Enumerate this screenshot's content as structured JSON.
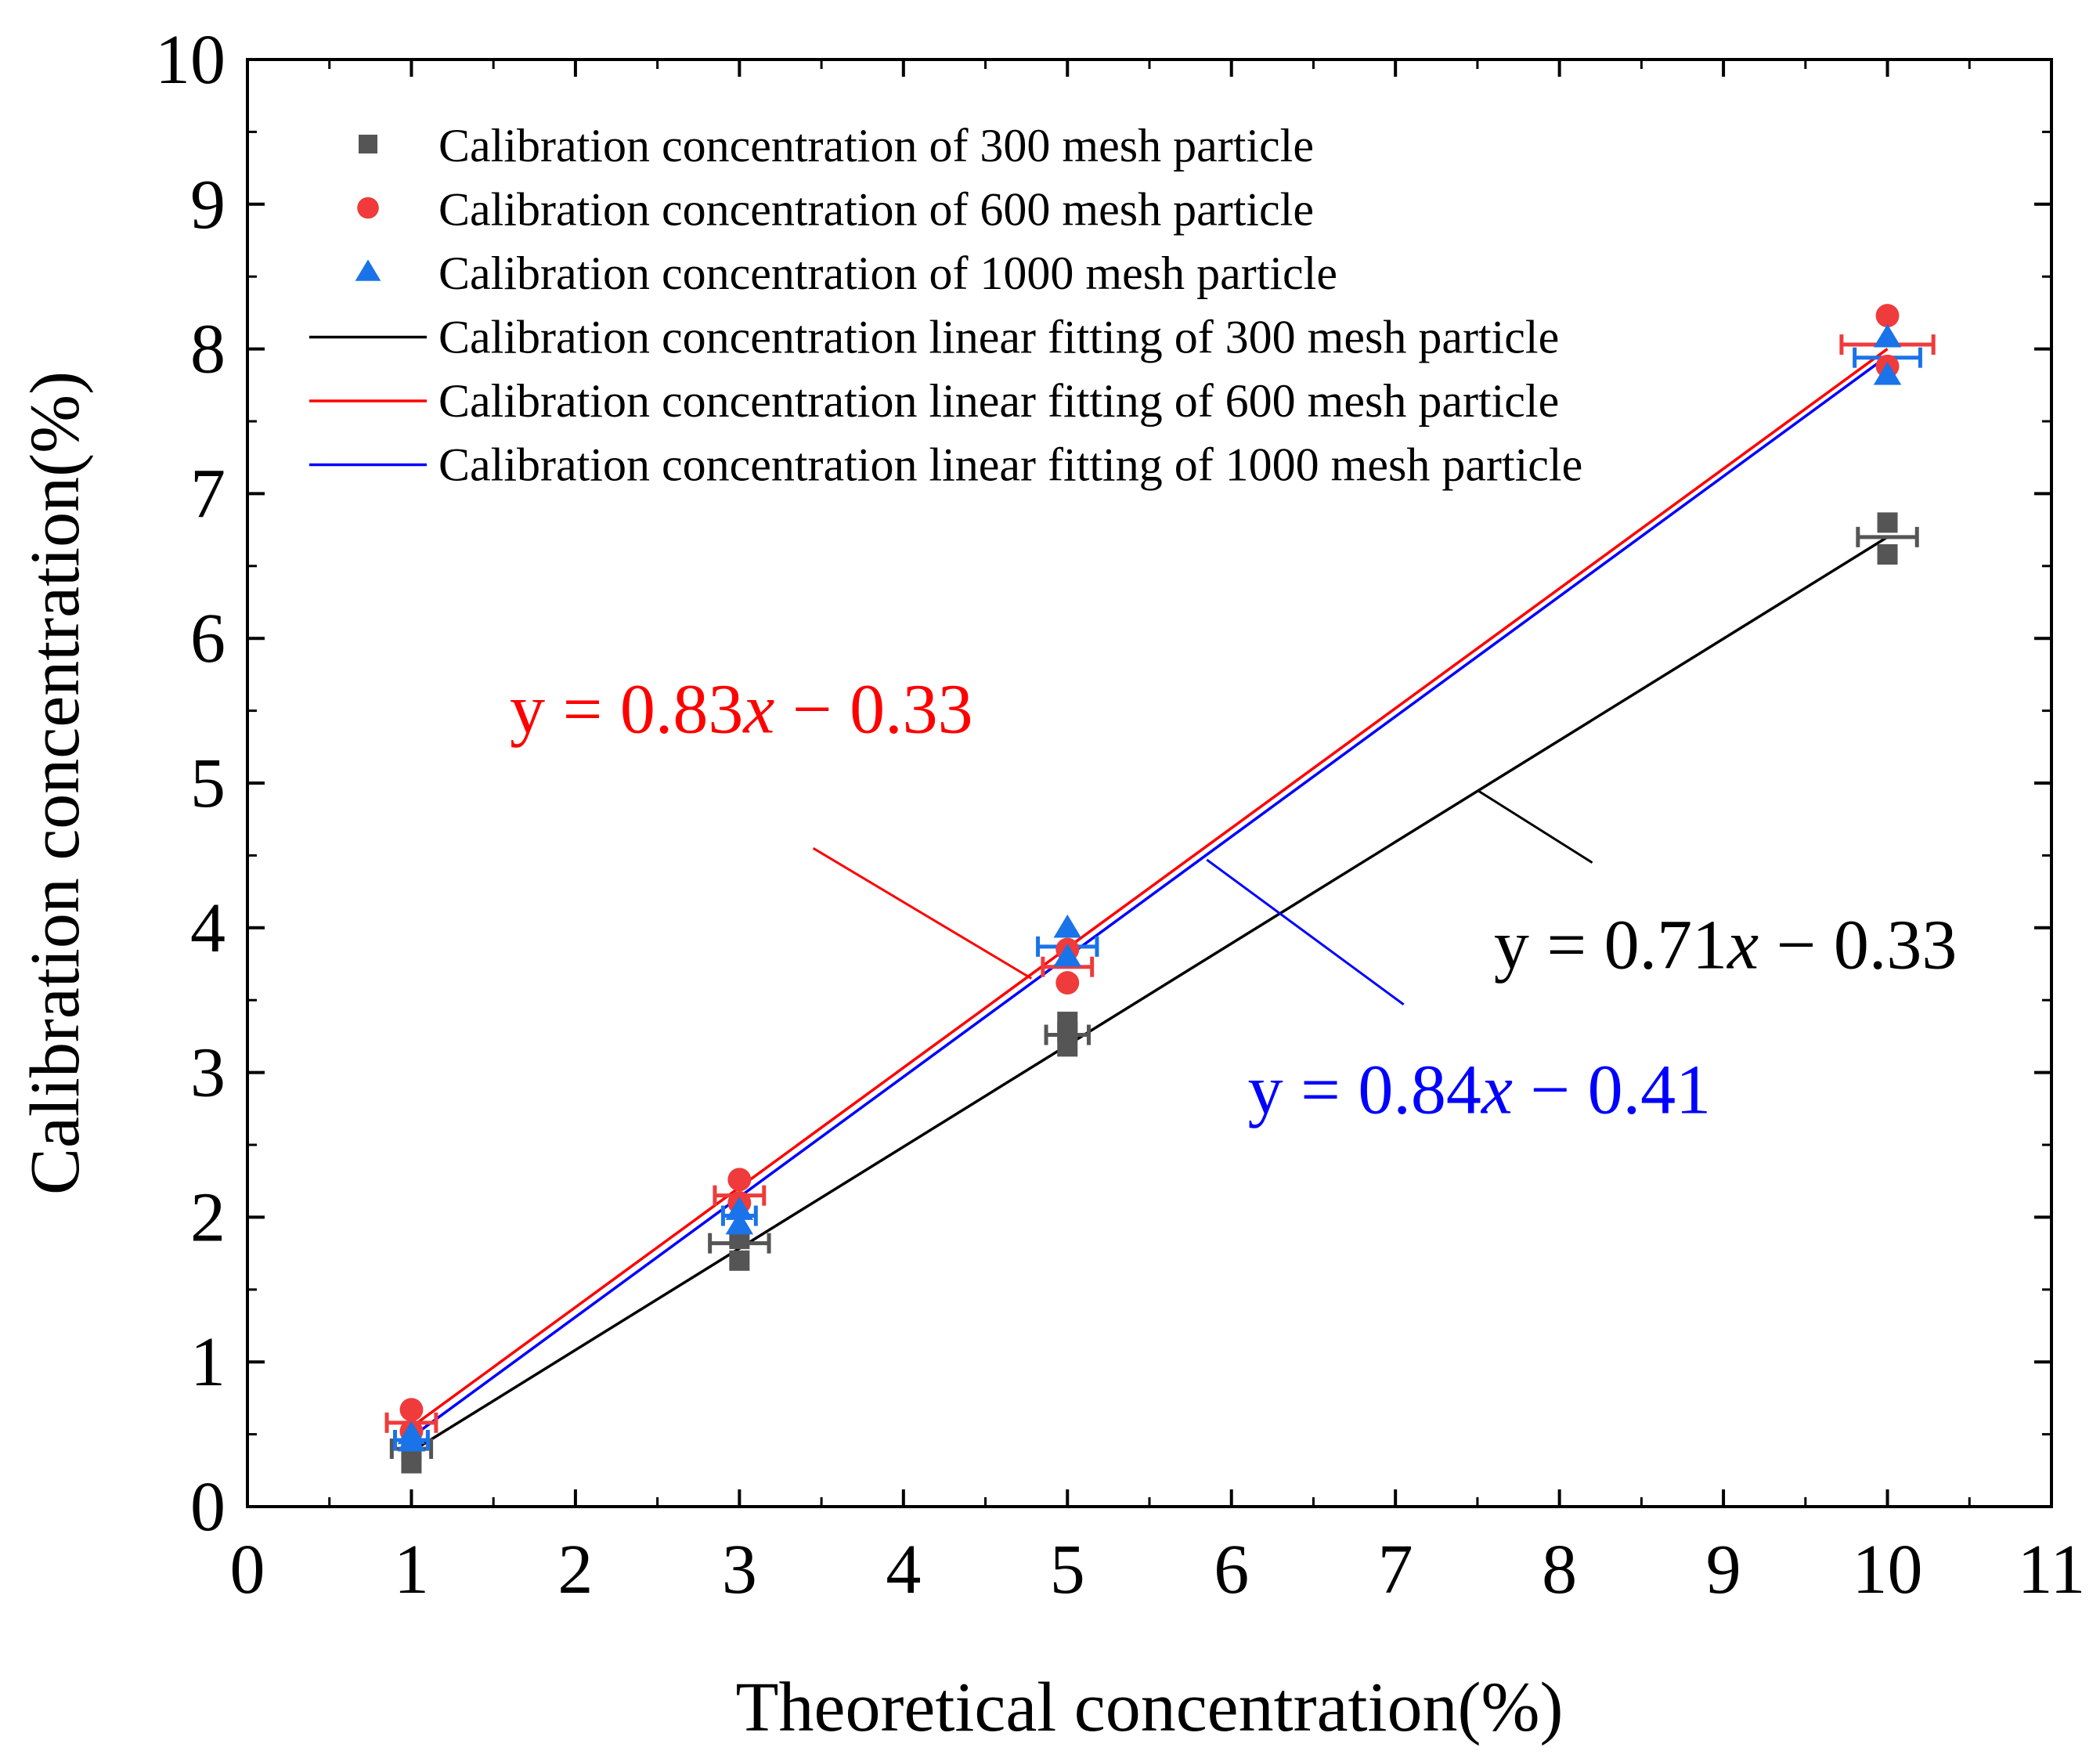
{
  "chart_data": {
    "type": "scatter",
    "title": "",
    "xlabel": "Theoretical concentration(%)",
    "ylabel": "Calibration concentration(%)",
    "xlim": [
      0,
      11
    ],
    "ylim": [
      0,
      10
    ],
    "xticks": [
      0,
      1,
      2,
      3,
      4,
      5,
      6,
      7,
      8,
      9,
      10,
      11
    ],
    "yticks": [
      0,
      1,
      2,
      3,
      4,
      5,
      6,
      7,
      8,
      9,
      10
    ],
    "legend_position": "top-left",
    "series": [
      {
        "name": "Calibration concentration of 300 mesh particle",
        "marker": "square",
        "color": "#555555",
        "points": [
          {
            "x": 1,
            "y": 0.3
          },
          {
            "x": 1,
            "y": 0.38
          },
          {
            "x": 3,
            "y": 1.7
          },
          {
            "x": 3,
            "y": 1.85
          },
          {
            "x": 5,
            "y": 3.18
          },
          {
            "x": 5,
            "y": 3.28
          },
          {
            "x": 5,
            "y": 3.35
          },
          {
            "x": 10,
            "y": 6.58
          },
          {
            "x": 10,
            "y": 6.8
          }
        ],
        "error_bars": [
          {
            "x": 1,
            "y": 0.4,
            "xerr": 0.12
          },
          {
            "x": 3,
            "y": 1.82,
            "xerr": 0.18
          },
          {
            "x": 5,
            "y": 3.26,
            "xerr": 0.13
          },
          {
            "x": 10,
            "y": 6.7,
            "xerr": 0.18
          }
        ]
      },
      {
        "name": "Calibration concentration of 600 mesh particle",
        "marker": "circle",
        "color": "#ef3b3b",
        "points": [
          {
            "x": 1,
            "y": 0.67
          },
          {
            "x": 1,
            "y": 0.52
          },
          {
            "x": 3,
            "y": 2.26
          },
          {
            "x": 3,
            "y": 2.1
          },
          {
            "x": 5,
            "y": 3.62
          },
          {
            "x": 5,
            "y": 3.85
          },
          {
            "x": 10,
            "y": 8.23
          },
          {
            "x": 10,
            "y": 7.88
          }
        ],
        "error_bars": [
          {
            "x": 1,
            "y": 0.58,
            "xerr": 0.15
          },
          {
            "x": 3,
            "y": 2.15,
            "xerr": 0.15
          },
          {
            "x": 5,
            "y": 3.73,
            "xerr": 0.15
          },
          {
            "x": 10,
            "y": 8.03,
            "xerr": 0.28
          }
        ]
      },
      {
        "name": "Calibration concentration of 1000 mesh particle",
        "marker": "triangle",
        "color": "#1a73e8",
        "points": [
          {
            "x": 1,
            "y": 0.45
          },
          {
            "x": 1,
            "y": 0.5
          },
          {
            "x": 3,
            "y": 1.95
          },
          {
            "x": 3,
            "y": 2.05
          },
          {
            "x": 5,
            "y": 4.0
          },
          {
            "x": 5,
            "y": 3.8
          },
          {
            "x": 10,
            "y": 8.08
          },
          {
            "x": 10,
            "y": 7.82
          }
        ],
        "error_bars": [
          {
            "x": 1,
            "y": 0.46,
            "xerr": 0.1
          },
          {
            "x": 3,
            "y": 2.01,
            "xerr": 0.1
          },
          {
            "x": 5,
            "y": 3.87,
            "xerr": 0.18
          },
          {
            "x": 10,
            "y": 7.94,
            "xerr": 0.2
          }
        ]
      }
    ],
    "fits": [
      {
        "name": "Calibration concentration linear fitting of 300 mesh particle",
        "color": "#000000",
        "x0": 1,
        "y0": 0.38,
        "x1": 10,
        "y1": 6.7
      },
      {
        "name": "Calibration concentration linear fitting of 600 mesh particle",
        "color": "#ff0000",
        "x0": 1,
        "y0": 0.55,
        "x1": 10,
        "y1": 8.0
      },
      {
        "name": "Calibration concentration linear fitting of 1000 mesh particle",
        "color": "#0000ff",
        "x0": 1,
        "y0": 0.48,
        "x1": 10,
        "y1": 7.95
      }
    ],
    "annotations": [
      {
        "id": "eq600",
        "text": "y = 0.83x − 0.33",
        "pre": "y = 0.83",
        "var": "x",
        "post": " − 0.33",
        "color": "#ff0000",
        "x": 1.6,
        "y": 5.35,
        "leader": [
          [
            3.45,
            4.55
          ],
          [
            4.78,
            3.65
          ]
        ]
      },
      {
        "id": "eq300",
        "text": "y = 0.71x − 0.33",
        "pre": "y = 0.71",
        "var": "x",
        "post": " − 0.33",
        "color": "#000000",
        "x": 7.6,
        "y": 3.72,
        "leader": [
          [
            7.5,
            4.95
          ],
          [
            8.2,
            4.45
          ]
        ]
      },
      {
        "id": "eq1000",
        "text": "y = 0.84x − 0.41",
        "pre": "y = 0.84",
        "var": "x",
        "post": " − 0.41",
        "color": "#0000ff",
        "x": 6.1,
        "y": 2.72,
        "leader": [
          [
            5.85,
            4.47
          ],
          [
            7.05,
            3.47
          ]
        ]
      }
    ]
  }
}
